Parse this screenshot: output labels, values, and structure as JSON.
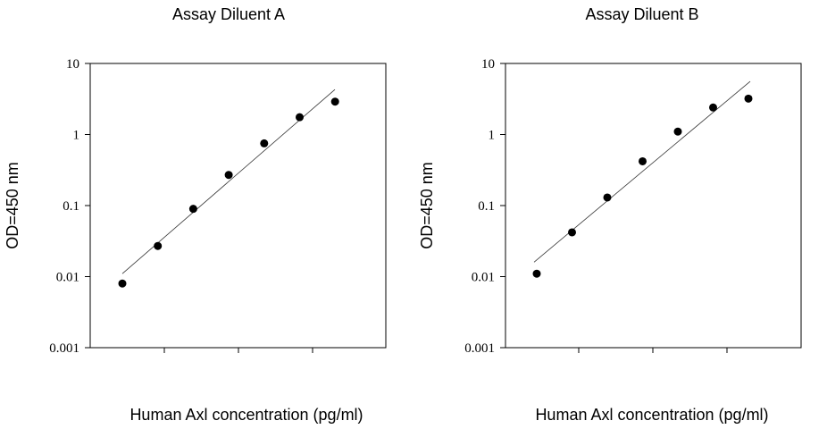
{
  "chart_data": [
    {
      "type": "scatter",
      "title": "Assay Diluent A",
      "xlabel": "Human Axl concentration (pg/ml)",
      "ylabel": "OD=450 nm",
      "y_scale": "log",
      "ylim": [
        0.001,
        10
      ],
      "y_ticks": [
        "10",
        "1",
        "0.1",
        "0.01",
        "0.001"
      ],
      "x_tick_labels": [],
      "points_y": [
        0.008,
        0.027,
        0.09,
        0.27,
        0.75,
        1.75,
        2.9
      ],
      "fit_line_y": [
        0.011,
        4.3
      ]
    },
    {
      "type": "scatter",
      "title": "Assay Diluent B",
      "xlabel": "Human Axl concentration (pg/ml)",
      "ylabel": "OD=450 nm",
      "y_scale": "log",
      "ylim": [
        0.001,
        10
      ],
      "y_ticks": [
        "10",
        "1",
        "0.1",
        "0.01",
        "0.001"
      ],
      "x_tick_labels": [],
      "points_y": [
        0.011,
        0.042,
        0.13,
        0.42,
        1.1,
        2.4,
        3.2
      ],
      "fit_line_y": [
        0.016,
        5.6
      ]
    }
  ]
}
